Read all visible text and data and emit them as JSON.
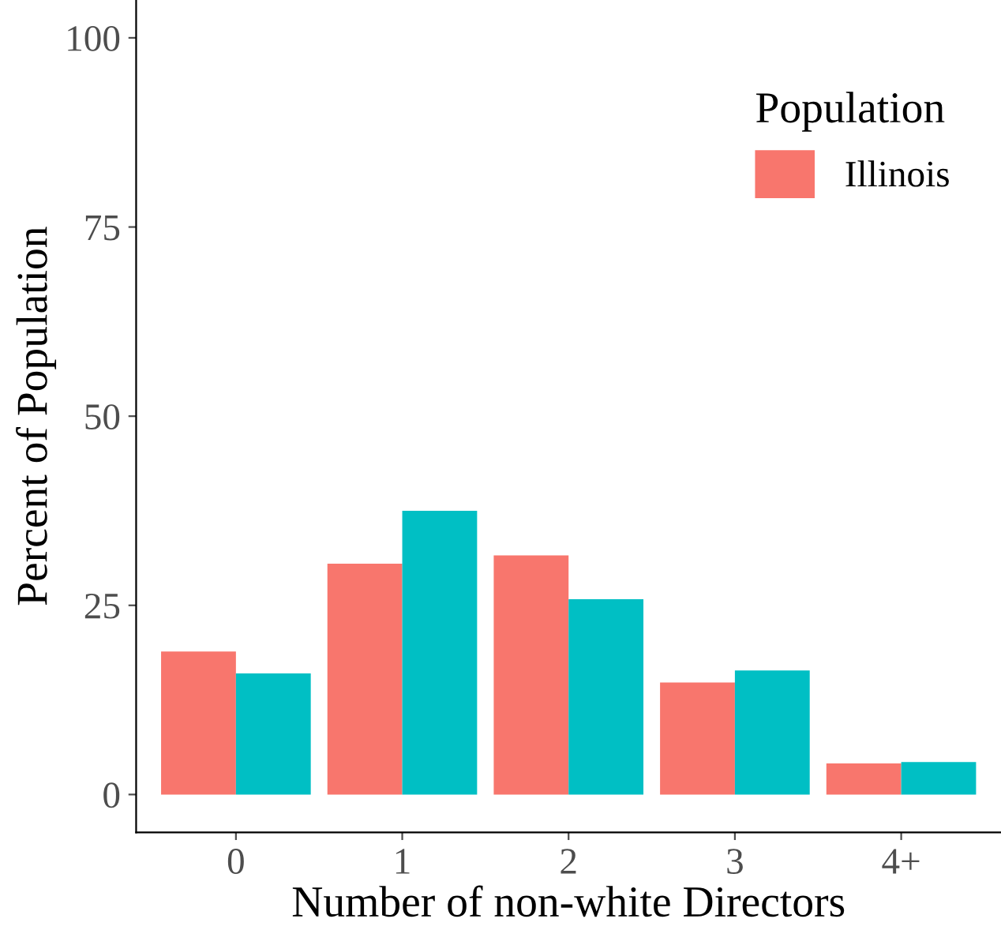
{
  "chart_data": {
    "type": "bar",
    "xlabel": "Number of non-white Directors",
    "ylabel": "Percent of Population",
    "legend_title": "Population",
    "categories": [
      "0",
      "1",
      "2",
      "3",
      "4+"
    ],
    "series": [
      {
        "name": "Illinois",
        "color": "#f8766d",
        "values": [
          18.9,
          30.5,
          31.6,
          14.8,
          4.1
        ]
      },
      {
        "color": "#00bfc4",
        "values": [
          16.0,
          37.5,
          25.8,
          16.4,
          4.3
        ]
      }
    ],
    "ylim": [
      -5,
      105
    ],
    "yticks": [
      0,
      25,
      50,
      75,
      100
    ],
    "grid": false,
    "legend": "top right"
  }
}
